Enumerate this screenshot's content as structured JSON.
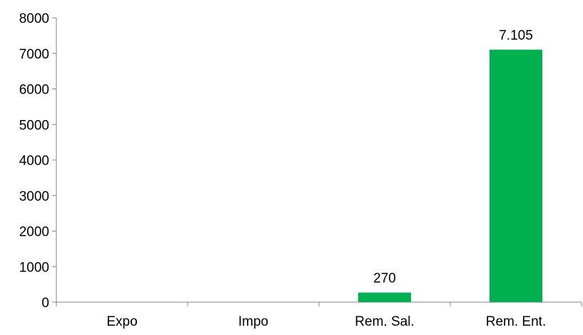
{
  "chart_data": {
    "type": "bar",
    "categories": [
      "Expo",
      "Impo",
      "Rem. Sal.",
      "Rem. Ent."
    ],
    "values": [
      0,
      0,
      270,
      7105
    ],
    "data_labels": [
      "",
      "",
      "270",
      "7.105"
    ],
    "y_ticks": [
      "0",
      "1000",
      "2000",
      "3000",
      "4000",
      "5000",
      "6000",
      "7000",
      "8000"
    ],
    "ylim": [
      0,
      8000
    ],
    "grid": false,
    "legend": "none",
    "bar_color": "#00b04f",
    "axis_color": "#868686"
  }
}
